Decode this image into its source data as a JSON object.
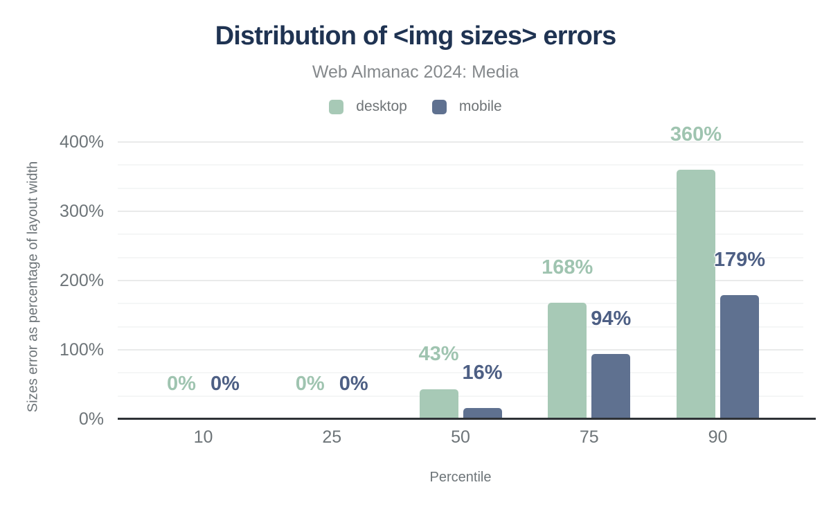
{
  "chart_data": {
    "type": "bar",
    "title": "Distribution of <img sizes> errors",
    "subtitle": "Web Almanac 2024: Media",
    "categories": [
      "10",
      "25",
      "50",
      "75",
      "90"
    ],
    "series": [
      {
        "name": "desktop",
        "values": [
          0,
          0,
          43,
          168,
          360
        ],
        "color": "#a7c9b6",
        "label_color": "#9fc4b0"
      },
      {
        "name": "mobile",
        "values": [
          0,
          0,
          16,
          94,
          179
        ],
        "color": "#5f7190",
        "label_color": "#4d5f84"
      }
    ],
    "value_suffix": "%",
    "xlabel": "Percentile",
    "ylabel": "Sizes error as percentage of layout width",
    "y_axis": {
      "min": 0,
      "max": 400,
      "major_step": 100,
      "minor_divisions": 3,
      "tick_suffix": "%"
    },
    "y_ticks": [
      "0%",
      "100%",
      "200%",
      "300%",
      "400%"
    ],
    "legend_position": "top",
    "grid": true,
    "colors": {
      "title": "#1f3352",
      "subtitle": "#85898c",
      "tick_text": "#6d7478",
      "axis_line": "#2e3236",
      "gridline_major": "#e9eaea",
      "gridline_minor": "#f5f6f6",
      "background": "#ffffff"
    }
  }
}
